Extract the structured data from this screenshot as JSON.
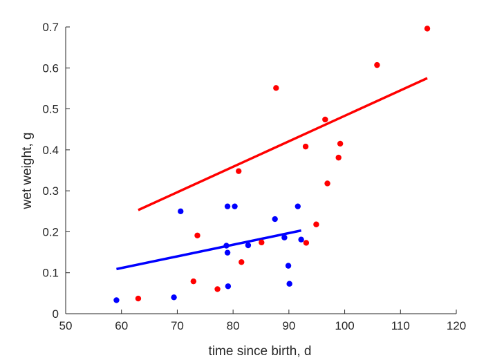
{
  "chart_data": {
    "type": "scatter",
    "title": "",
    "xlabel": "time since birth, d",
    "ylabel": "wet weight, g",
    "xlim": [
      50,
      120
    ],
    "ylim": [
      0,
      0.7
    ],
    "xticks": [
      50,
      60,
      70,
      80,
      90,
      100,
      110,
      120
    ],
    "yticks": [
      0,
      0.1,
      0.2,
      0.3,
      0.4,
      0.5,
      0.6,
      0.7
    ],
    "grid": false,
    "series": [
      {
        "name": "red",
        "color": "#ff0000",
        "points": [
          [
            63.0,
            0.037
          ],
          [
            72.9,
            0.079
          ],
          [
            73.6,
            0.191
          ],
          [
            77.2,
            0.06
          ],
          [
            81.0,
            0.348
          ],
          [
            81.5,
            0.126
          ],
          [
            85.1,
            0.174
          ],
          [
            87.7,
            0.551
          ],
          [
            93.0,
            0.408
          ],
          [
            93.1,
            0.173
          ],
          [
            94.9,
            0.218
          ],
          [
            96.5,
            0.474
          ],
          [
            96.9,
            0.318
          ],
          [
            98.9,
            0.381
          ],
          [
            99.2,
            0.415
          ],
          [
            105.8,
            0.607
          ],
          [
            114.8,
            0.696
          ]
        ],
        "fit": [
          [
            63.0,
            0.253
          ],
          [
            114.8,
            0.575
          ]
        ]
      },
      {
        "name": "blue",
        "color": "#0000ff",
        "points": [
          [
            59.1,
            0.033
          ],
          [
            69.4,
            0.04
          ],
          [
            70.6,
            0.25
          ],
          [
            78.8,
            0.166
          ],
          [
            79.0,
            0.149
          ],
          [
            79.0,
            0.262
          ],
          [
            79.1,
            0.067
          ],
          [
            80.3,
            0.262
          ],
          [
            82.7,
            0.167
          ],
          [
            87.5,
            0.231
          ],
          [
            89.2,
            0.186
          ],
          [
            89.9,
            0.117
          ],
          [
            90.1,
            0.073
          ],
          [
            91.6,
            0.262
          ],
          [
            92.2,
            0.181
          ]
        ],
        "fit": [
          [
            59.1,
            0.109
          ],
          [
            92.2,
            0.203
          ]
        ]
      }
    ]
  }
}
